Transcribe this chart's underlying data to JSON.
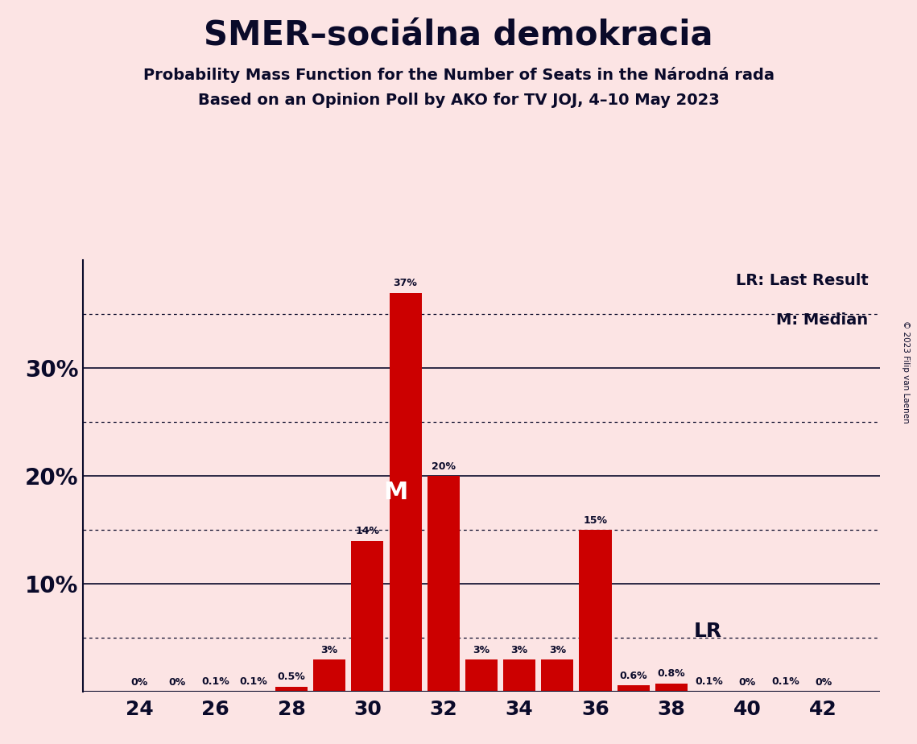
{
  "title": "SMER–sociálna demokracia",
  "subtitle1": "Probability Mass Function for the Number of Seats in the Národná rada",
  "subtitle2": "Based on an Opinion Poll by AKO for TV JOJ, 4–10 May 2023",
  "copyright": "© 2023 Filip van Laenen",
  "seats": [
    24,
    25,
    26,
    27,
    28,
    29,
    30,
    31,
    32,
    33,
    34,
    35,
    36,
    37,
    38,
    39,
    40,
    41,
    42
  ],
  "probabilities": [
    0.0,
    0.0,
    0.001,
    0.001,
    0.005,
    0.03,
    0.14,
    0.37,
    0.2,
    0.03,
    0.03,
    0.03,
    0.15,
    0.006,
    0.008,
    0.001,
    0.0,
    0.001,
    0.0
  ],
  "prob_labels": [
    "0%",
    "0%",
    "0.1%",
    "0.1%",
    "0.5%",
    "3%",
    "14%",
    "37%",
    "20%",
    "3%",
    "3%",
    "3%",
    "15%",
    "0.6%",
    "0.8%",
    "0.1%",
    "0%",
    "0.1%",
    "0%"
  ],
  "bar_color": "#cc0000",
  "background_color": "#fce4e4",
  "text_color": "#0a0a2a",
  "median_seat": 31,
  "lr_seat": 38,
  "lr_level": 0.05,
  "ylim": [
    0,
    0.4
  ],
  "major_yticks": [
    0.1,
    0.2,
    0.3
  ],
  "major_ytick_labels": [
    "10%",
    "20%",
    "30%"
  ],
  "dotted_yticks": [
    0.05,
    0.15,
    0.25,
    0.35
  ],
  "xtick_positions": [
    24,
    26,
    28,
    30,
    32,
    34,
    36,
    38,
    40,
    42
  ],
  "xtick_labels": [
    "24",
    "26",
    "28",
    "30",
    "32",
    "34",
    "36",
    "38",
    "40",
    "42"
  ],
  "xlim": [
    22.5,
    43.5
  ]
}
